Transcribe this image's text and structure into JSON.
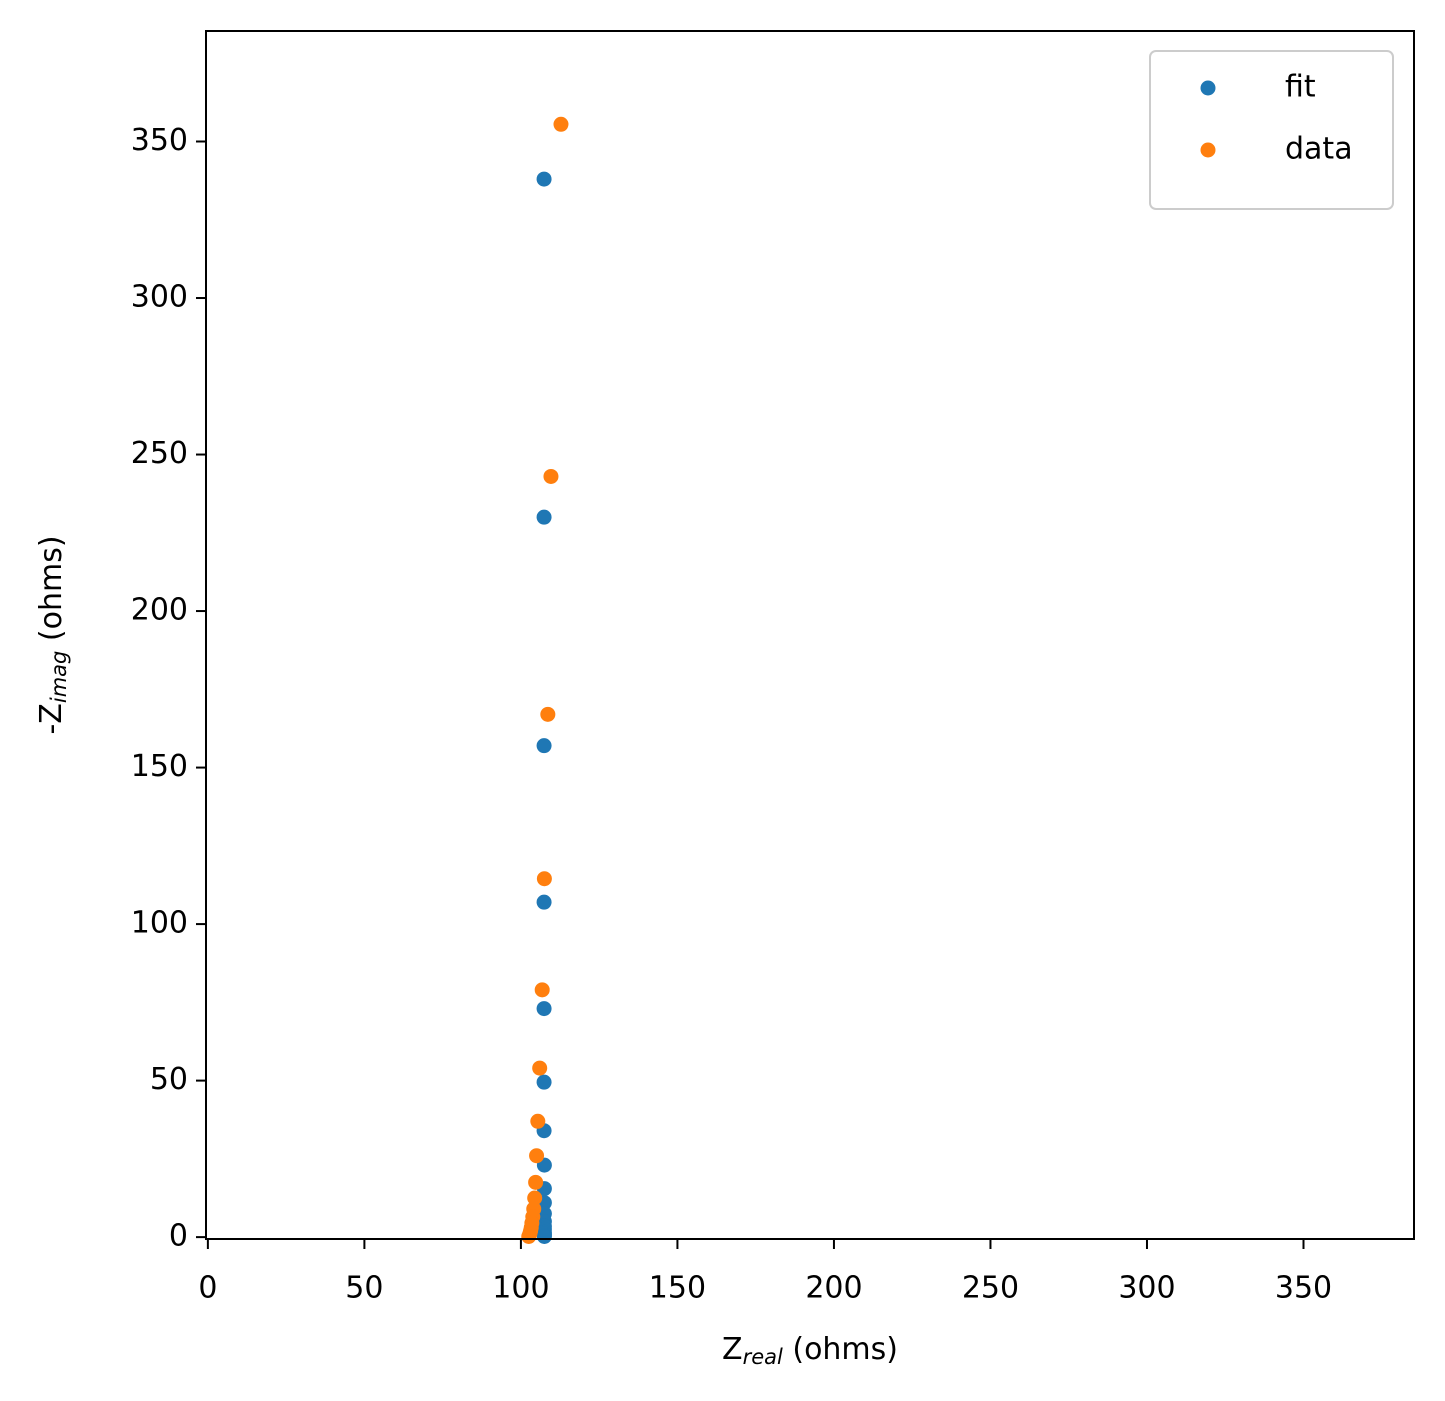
{
  "chart_data": {
    "type": "scatter",
    "x_label": {
      "text": "Z",
      "subscript": "real",
      "suffix": " (ohms)"
    },
    "y_label": {
      "text": "-Z",
      "subscript": "imag",
      "suffix": " (ohms)"
    },
    "series": [
      {
        "name": "fit",
        "color": "#1f77b4",
        "x": [
          107.4,
          107.4,
          107.4,
          107.4,
          107.4,
          107.4,
          107.4,
          107.5,
          107.5,
          107.5,
          107.5,
          107.5,
          107.5,
          107.5,
          107.5,
          107.5,
          107.5,
          107.5
        ],
        "values": [
          338,
          230,
          157,
          107,
          73,
          49.5,
          34,
          23,
          15.5,
          11,
          7.5,
          5,
          3.5,
          2.5,
          1.5,
          1,
          0.5,
          0.2
        ]
      },
      {
        "name": "data",
        "color": "#ff7f0e",
        "x": [
          112.8,
          109.6,
          108.6,
          107.5,
          106.8,
          106,
          105.4,
          105,
          104.7,
          104.4,
          104.1,
          103.8,
          103.5,
          103.3,
          103.1,
          102.9,
          102.7,
          102.5
        ],
        "values": [
          355.5,
          243,
          167,
          114.5,
          79,
          54,
          37,
          26,
          17.5,
          12.5,
          9,
          6.5,
          4.5,
          3,
          2,
          1.2,
          0.6,
          0.2
        ]
      }
    ],
    "xlim": [
      -0.6,
      385.3
    ],
    "ylim": [
      -0.6,
      385.3
    ],
    "xticks": [
      0,
      50,
      100,
      150,
      200,
      250,
      300,
      350
    ],
    "yticks": [
      0,
      50,
      100,
      150,
      200,
      250,
      300,
      350
    ],
    "legend": "upper right"
  }
}
